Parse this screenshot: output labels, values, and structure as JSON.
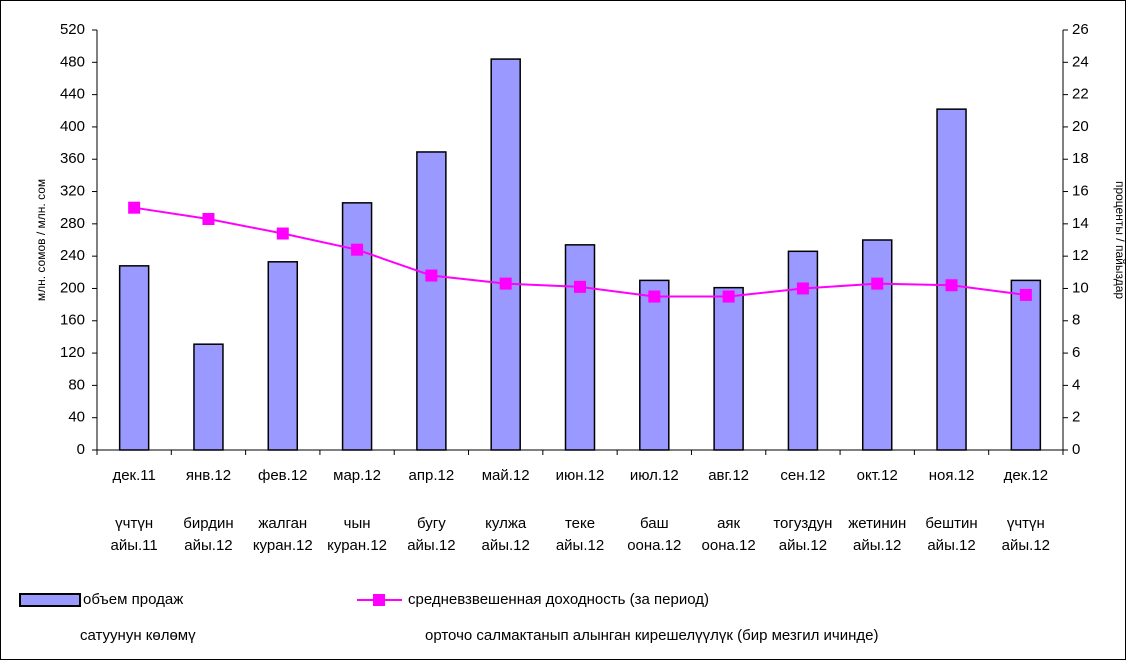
{
  "chart_data": {
    "type": "bar_line",
    "categories": [
      "дек.11",
      "янв.12",
      "фев.12",
      "мар.12",
      "апр.12",
      "май.12",
      "июн.12",
      "июл.12",
      "авг.12",
      "сен.12",
      "окт.12",
      "ноя.12",
      "дек.12"
    ],
    "categories_ky": [
      [
        "үчтүн",
        "айы.11"
      ],
      [
        "бирдин",
        "айы.12"
      ],
      [
        "жалган",
        "куран.12"
      ],
      [
        "чын",
        "куран.12"
      ],
      [
        "бугу",
        "айы.12"
      ],
      [
        "кулжа",
        "айы.12"
      ],
      [
        "теке",
        "айы.12"
      ],
      [
        "баш",
        "оона.12"
      ],
      [
        "аяк",
        "оона.12"
      ],
      [
        "тогуздун",
        "айы.12"
      ],
      [
        "жетинин",
        "айы.12"
      ],
      [
        "бештин",
        "айы.12"
      ],
      [
        "үчтүн",
        "айы.12"
      ]
    ],
    "series": [
      {
        "name": "объем продаж",
        "translation": "сатуунун көлөмү",
        "type": "bar",
        "color": "#9999ff",
        "values": [
          228,
          131,
          233,
          306,
          369,
          484,
          254,
          210,
          201,
          246,
          260,
          422,
          210
        ]
      },
      {
        "name": "средневзвешенная доходность (за период)",
        "translation": "орточо салмактанып алынган кирешелүүлүк (бир мезгил ичинде)",
        "type": "line",
        "axis": "y2",
        "color": "#ff00ff",
        "values": [
          15.0,
          14.3,
          13.4,
          12.4,
          10.8,
          10.3,
          10.1,
          9.5,
          9.5,
          10.0,
          10.3,
          10.2,
          9.6
        ]
      }
    ],
    "y_label": "млн. сомов / млн. сом",
    "y2_label": "проценты / пайыздар",
    "ylim": [
      0,
      520
    ],
    "yticks": [
      0,
      40,
      80,
      120,
      160,
      200,
      240,
      280,
      320,
      360,
      400,
      440,
      480,
      520
    ],
    "y2lim": [
      0,
      26
    ],
    "y2ticks": [
      0,
      2,
      4,
      6,
      8,
      10,
      12,
      14,
      16,
      18,
      20,
      22,
      24,
      26
    ],
    "grid": false
  }
}
